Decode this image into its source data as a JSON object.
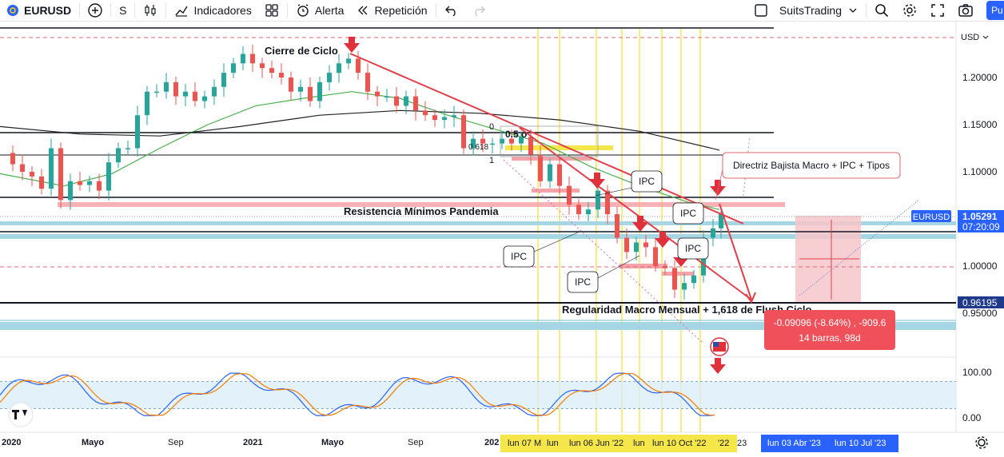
{
  "toolbar": {
    "symbol": "EURUSD",
    "interval": "S",
    "indicators_label": "Indicadores",
    "alert_label": "Alerta",
    "replay_label": "Repetición",
    "account_label": "SuitsTrading",
    "publish_label": "Pu"
  },
  "colors": {
    "up": "#26a69a",
    "down": "#ef5350",
    "accent": "#2962ff",
    "trendline": "#e0404a",
    "ma_green": "#4caf50",
    "ma_black": "#222222",
    "vline": "#f5d90a"
  },
  "chart_data": {
    "type": "candlestick",
    "symbol": "EURUSD",
    "currency_label": "USD",
    "y_ticks": [
      "1.20000",
      "1.15000",
      "1.10000",
      "1.05000",
      "1.00000",
      "0.95000"
    ],
    "ylim": [
      0.925,
      1.245
    ],
    "x_ticks": [
      "2020",
      "Mayo",
      "Sep",
      "2021",
      "Mayo",
      "Sep",
      "202"
    ],
    "x_highlight_labels": [
      "lun 07 M",
      "lun",
      "lun 06 Jun '22",
      "lun",
      "lun 10 Oct '22",
      "'22",
      "23"
    ],
    "x_future_labels": [
      "lun 03 Abr '23",
      "lun 10 Jul '23"
    ],
    "last_price": "1.05291",
    "countdown": "07:20:09",
    "level_price": "0.96195",
    "annotations": {
      "cycle_close": "Cierre de Ciclo",
      "resistance": "Resistencia Mínimos Pandemia",
      "regularity": "Regularidad Macro Mensual + 1,618 de Flush Ciclo",
      "directrix": "Directriz Bajista Macro + IPC + Tipos",
      "ipc": "IPC",
      "fib_0": "0",
      "fib_1": "1",
      "fib_0618": "0.618",
      "fib_extra": "0.5 o",
      "ticker_tag": "EURUSD"
    },
    "measure": {
      "line1": "-0.09096 (-8.64%) , -909.6",
      "line2": "14 barras, 98d"
    },
    "oscillator": {
      "y_ticks": [
        "100.00",
        "0.00"
      ],
      "ylim": [
        -10,
        110
      ]
    },
    "grid": false,
    "legend": "none"
  }
}
